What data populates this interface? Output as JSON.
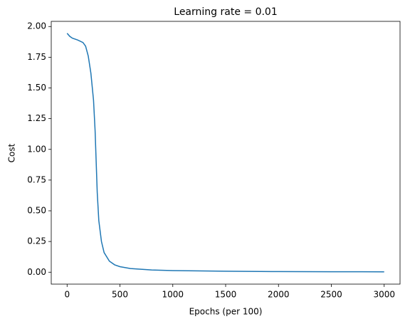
{
  "chart_data": {
    "type": "line",
    "title": "Learning rate = 0.01",
    "xlabel": "Epochs (per 100)",
    "ylabel": "Cost",
    "x": [
      0,
      25,
      50,
      100,
      150,
      175,
      200,
      225,
      250,
      265,
      275,
      285,
      300,
      325,
      350,
      400,
      450,
      500,
      600,
      800,
      1000,
      1500,
      2000,
      2500,
      3000
    ],
    "series": [
      {
        "name": "cost",
        "color": "#1f77b4",
        "values": [
          1.945,
          1.92,
          1.905,
          1.89,
          1.87,
          1.84,
          1.76,
          1.62,
          1.4,
          1.15,
          0.9,
          0.65,
          0.42,
          0.25,
          0.16,
          0.09,
          0.06,
          0.045,
          0.03,
          0.018,
          0.013,
          0.008,
          0.005,
          0.004,
          0.003
        ]
      }
    ],
    "xlim": [
      -150,
      3150
    ],
    "xticks": [
      0,
      500,
      1000,
      1500,
      2000,
      2500,
      3000
    ],
    "ylim": [
      -0.097,
      2.042
    ],
    "yticks": [
      {
        "value": 0,
        "label": "0.00"
      },
      {
        "value": 0.25,
        "label": "0.25"
      },
      {
        "value": 0.5,
        "label": "0.50"
      },
      {
        "value": 0.75,
        "label": "0.75"
      },
      {
        "value": 1,
        "label": "1.00"
      },
      {
        "value": 1.25,
        "label": "1.25"
      },
      {
        "value": 1.5,
        "label": "1.50"
      },
      {
        "value": 1.75,
        "label": "1.75"
      },
      {
        "value": 2,
        "label": "2.00"
      }
    ],
    "grid": false
  }
}
